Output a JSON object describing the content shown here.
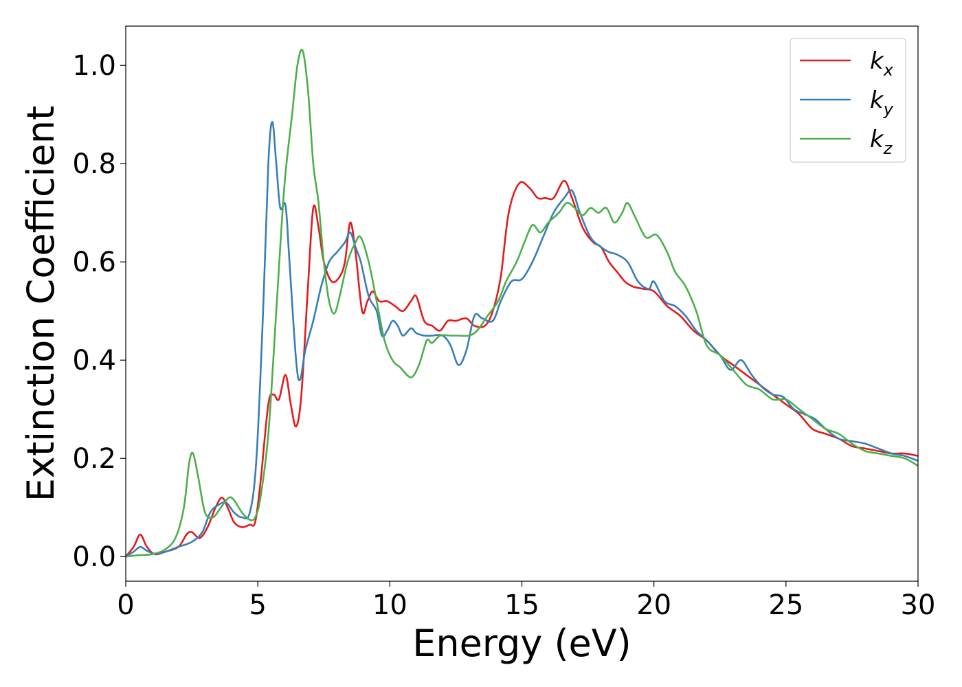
{
  "chart_data": {
    "type": "line",
    "xlabel": "Energy (eV)",
    "ylabel": "Extinction Coefficient",
    "xlim": [
      0,
      30
    ],
    "ylim": [
      -0.05,
      1.08
    ],
    "x_ticks": [
      "0",
      "5",
      "10",
      "15",
      "20",
      "25",
      "30"
    ],
    "y_ticks": [
      "0.0",
      "0.2",
      "0.4",
      "0.6",
      "0.8",
      "1.0"
    ],
    "grid": false,
    "legend_position": "top-right",
    "series": [
      {
        "name": "k",
        "subscript": "x",
        "color": "#e41a1c",
        "points": [
          [
            0,
            0
          ],
          [
            0.3,
            0.02
          ],
          [
            0.55,
            0.045
          ],
          [
            0.8,
            0.02
          ],
          [
            1.1,
            0.005
          ],
          [
            1.5,
            0.01
          ],
          [
            2.0,
            0.02
          ],
          [
            2.3,
            0.045
          ],
          [
            2.5,
            0.05
          ],
          [
            2.8,
            0.038
          ],
          [
            3.1,
            0.06
          ],
          [
            3.4,
            0.1
          ],
          [
            3.65,
            0.12
          ],
          [
            3.9,
            0.095
          ],
          [
            4.1,
            0.07
          ],
          [
            4.4,
            0.06
          ],
          [
            4.7,
            0.065
          ],
          [
            4.9,
            0.07
          ],
          [
            5.1,
            0.15
          ],
          [
            5.4,
            0.31
          ],
          [
            5.6,
            0.33
          ],
          [
            5.8,
            0.32
          ],
          [
            6.05,
            0.37
          ],
          [
            6.25,
            0.31
          ],
          [
            6.45,
            0.265
          ],
          [
            6.65,
            0.33
          ],
          [
            6.9,
            0.55
          ],
          [
            7.1,
            0.71
          ],
          [
            7.3,
            0.67
          ],
          [
            7.5,
            0.6
          ],
          [
            7.8,
            0.56
          ],
          [
            8.1,
            0.57
          ],
          [
            8.3,
            0.6
          ],
          [
            8.5,
            0.68
          ],
          [
            8.7,
            0.62
          ],
          [
            8.95,
            0.5
          ],
          [
            9.15,
            0.52
          ],
          [
            9.35,
            0.54
          ],
          [
            9.6,
            0.52
          ],
          [
            9.9,
            0.52
          ],
          [
            10.2,
            0.51
          ],
          [
            10.5,
            0.5
          ],
          [
            10.8,
            0.52
          ],
          [
            11.0,
            0.53
          ],
          [
            11.3,
            0.48
          ],
          [
            11.6,
            0.47
          ],
          [
            11.9,
            0.46
          ],
          [
            12.2,
            0.48
          ],
          [
            12.5,
            0.48
          ],
          [
            12.9,
            0.485
          ],
          [
            13.2,
            0.47
          ],
          [
            13.6,
            0.47
          ],
          [
            13.9,
            0.5
          ],
          [
            14.2,
            0.57
          ],
          [
            14.5,
            0.7
          ],
          [
            14.9,
            0.76
          ],
          [
            15.3,
            0.75
          ],
          [
            15.6,
            0.73
          ],
          [
            15.9,
            0.73
          ],
          [
            16.2,
            0.73
          ],
          [
            16.6,
            0.765
          ],
          [
            16.9,
            0.73
          ],
          [
            17.3,
            0.67
          ],
          [
            17.7,
            0.64
          ],
          [
            18.0,
            0.63
          ],
          [
            18.3,
            0.6
          ],
          [
            18.6,
            0.58
          ],
          [
            18.9,
            0.56
          ],
          [
            19.2,
            0.55
          ],
          [
            19.6,
            0.545
          ],
          [
            20.0,
            0.54
          ],
          [
            20.5,
            0.51
          ],
          [
            21.0,
            0.49
          ],
          [
            21.5,
            0.46
          ],
          [
            22.0,
            0.44
          ],
          [
            22.5,
            0.41
          ],
          [
            23.0,
            0.39
          ],
          [
            23.5,
            0.37
          ],
          [
            24.0,
            0.35
          ],
          [
            24.5,
            0.33
          ],
          [
            25.0,
            0.31
          ],
          [
            25.5,
            0.29
          ],
          [
            26.0,
            0.26
          ],
          [
            26.5,
            0.25
          ],
          [
            27.0,
            0.24
          ],
          [
            27.5,
            0.225
          ],
          [
            28.0,
            0.22
          ],
          [
            28.5,
            0.215
          ],
          [
            29.0,
            0.21
          ],
          [
            29.5,
            0.21
          ],
          [
            30.0,
            0.205
          ]
        ]
      },
      {
        "name": "k",
        "subscript": "y",
        "color": "#377eb8",
        "points": [
          [
            0,
            0
          ],
          [
            0.3,
            0.01
          ],
          [
            0.55,
            0.02
          ],
          [
            0.8,
            0.012
          ],
          [
            1.1,
            0.006
          ],
          [
            1.5,
            0.01
          ],
          [
            2.0,
            0.02
          ],
          [
            2.5,
            0.03
          ],
          [
            2.9,
            0.05
          ],
          [
            3.2,
            0.09
          ],
          [
            3.5,
            0.105
          ],
          [
            3.8,
            0.11
          ],
          [
            4.1,
            0.09
          ],
          [
            4.4,
            0.08
          ],
          [
            4.7,
            0.09
          ],
          [
            4.95,
            0.2
          ],
          [
            5.2,
            0.5
          ],
          [
            5.4,
            0.8
          ],
          [
            5.55,
            0.885
          ],
          [
            5.7,
            0.8
          ],
          [
            5.85,
            0.71
          ],
          [
            6.05,
            0.715
          ],
          [
            6.2,
            0.6
          ],
          [
            6.45,
            0.4
          ],
          [
            6.6,
            0.36
          ],
          [
            6.8,
            0.42
          ],
          [
            7.1,
            0.48
          ],
          [
            7.4,
            0.55
          ],
          [
            7.7,
            0.6
          ],
          [
            8.0,
            0.62
          ],
          [
            8.3,
            0.64
          ],
          [
            8.5,
            0.66
          ],
          [
            8.7,
            0.63
          ],
          [
            8.9,
            0.6
          ],
          [
            9.2,
            0.53
          ],
          [
            9.5,
            0.5
          ],
          [
            9.7,
            0.45
          ],
          [
            9.9,
            0.46
          ],
          [
            10.1,
            0.48
          ],
          [
            10.3,
            0.47
          ],
          [
            10.5,
            0.45
          ],
          [
            10.8,
            0.465
          ],
          [
            11.0,
            0.455
          ],
          [
            11.3,
            0.45
          ],
          [
            11.6,
            0.45
          ],
          [
            12.0,
            0.45
          ],
          [
            12.3,
            0.43
          ],
          [
            12.6,
            0.39
          ],
          [
            12.9,
            0.42
          ],
          [
            13.2,
            0.49
          ],
          [
            13.5,
            0.485
          ],
          [
            13.9,
            0.48
          ],
          [
            14.2,
            0.52
          ],
          [
            14.6,
            0.56
          ],
          [
            15.0,
            0.565
          ],
          [
            15.4,
            0.6
          ],
          [
            15.8,
            0.65
          ],
          [
            16.2,
            0.7
          ],
          [
            16.6,
            0.73
          ],
          [
            16.9,
            0.745
          ],
          [
            17.2,
            0.7
          ],
          [
            17.6,
            0.65
          ],
          [
            18.0,
            0.63
          ],
          [
            18.3,
            0.62
          ],
          [
            18.6,
            0.615
          ],
          [
            19.0,
            0.6
          ],
          [
            19.4,
            0.56
          ],
          [
            19.8,
            0.545
          ],
          [
            20.0,
            0.56
          ],
          [
            20.4,
            0.52
          ],
          [
            20.8,
            0.51
          ],
          [
            21.2,
            0.49
          ],
          [
            21.6,
            0.46
          ],
          [
            22.0,
            0.44
          ],
          [
            22.5,
            0.41
          ],
          [
            22.9,
            0.38
          ],
          [
            23.3,
            0.4
          ],
          [
            23.7,
            0.37
          ],
          [
            24.1,
            0.345
          ],
          [
            24.5,
            0.33
          ],
          [
            24.9,
            0.325
          ],
          [
            25.3,
            0.3
          ],
          [
            25.7,
            0.29
          ],
          [
            26.1,
            0.28
          ],
          [
            26.5,
            0.26
          ],
          [
            27.0,
            0.24
          ],
          [
            27.5,
            0.235
          ],
          [
            28.0,
            0.23
          ],
          [
            28.5,
            0.22
          ],
          [
            29.0,
            0.21
          ],
          [
            29.5,
            0.205
          ],
          [
            30.0,
            0.195
          ]
        ]
      },
      {
        "name": "k",
        "subscript": "z",
        "color": "#4daf4a",
        "points": [
          [
            0,
            0
          ],
          [
            0.5,
            0.003
          ],
          [
            1.0,
            0.005
          ],
          [
            1.5,
            0.015
          ],
          [
            1.9,
            0.04
          ],
          [
            2.2,
            0.1
          ],
          [
            2.4,
            0.19
          ],
          [
            2.55,
            0.21
          ],
          [
            2.75,
            0.16
          ],
          [
            3.0,
            0.09
          ],
          [
            3.3,
            0.08
          ],
          [
            3.6,
            0.1
          ],
          [
            3.9,
            0.12
          ],
          [
            4.1,
            0.115
          ],
          [
            4.4,
            0.09
          ],
          [
            4.7,
            0.075
          ],
          [
            4.9,
            0.08
          ],
          [
            5.1,
            0.12
          ],
          [
            5.4,
            0.25
          ],
          [
            5.7,
            0.5
          ],
          [
            6.0,
            0.75
          ],
          [
            6.3,
            0.9
          ],
          [
            6.5,
            1.0
          ],
          [
            6.7,
            1.03
          ],
          [
            6.9,
            0.95
          ],
          [
            7.1,
            0.8
          ],
          [
            7.3,
            0.72
          ],
          [
            7.5,
            0.6
          ],
          [
            7.7,
            0.52
          ],
          [
            7.9,
            0.495
          ],
          [
            8.1,
            0.53
          ],
          [
            8.4,
            0.6
          ],
          [
            8.7,
            0.64
          ],
          [
            8.9,
            0.65
          ],
          [
            9.2,
            0.6
          ],
          [
            9.5,
            0.52
          ],
          [
            9.8,
            0.44
          ],
          [
            10.1,
            0.4
          ],
          [
            10.4,
            0.385
          ],
          [
            10.8,
            0.365
          ],
          [
            11.1,
            0.39
          ],
          [
            11.4,
            0.44
          ],
          [
            11.6,
            0.435
          ],
          [
            11.9,
            0.45
          ],
          [
            12.3,
            0.45
          ],
          [
            12.6,
            0.45
          ],
          [
            13.0,
            0.45
          ],
          [
            13.3,
            0.46
          ],
          [
            13.7,
            0.49
          ],
          [
            14.1,
            0.52
          ],
          [
            14.4,
            0.56
          ],
          [
            14.8,
            0.6
          ],
          [
            15.1,
            0.64
          ],
          [
            15.4,
            0.675
          ],
          [
            15.7,
            0.66
          ],
          [
            16.0,
            0.68
          ],
          [
            16.4,
            0.7
          ],
          [
            16.7,
            0.72
          ],
          [
            17.0,
            0.71
          ],
          [
            17.3,
            0.695
          ],
          [
            17.6,
            0.71
          ],
          [
            17.9,
            0.7
          ],
          [
            18.2,
            0.71
          ],
          [
            18.5,
            0.68
          ],
          [
            18.8,
            0.7
          ],
          [
            19.0,
            0.72
          ],
          [
            19.3,
            0.69
          ],
          [
            19.7,
            0.65
          ],
          [
            20.1,
            0.655
          ],
          [
            20.5,
            0.62
          ],
          [
            20.8,
            0.58
          ],
          [
            21.2,
            0.55
          ],
          [
            21.6,
            0.5
          ],
          [
            22.0,
            0.43
          ],
          [
            22.5,
            0.41
          ],
          [
            23.0,
            0.38
          ],
          [
            23.5,
            0.35
          ],
          [
            24.0,
            0.34
          ],
          [
            24.5,
            0.32
          ],
          [
            25.0,
            0.32
          ],
          [
            25.5,
            0.3
          ],
          [
            26.0,
            0.28
          ],
          [
            26.5,
            0.26
          ],
          [
            27.0,
            0.25
          ],
          [
            27.5,
            0.23
          ],
          [
            28.0,
            0.215
          ],
          [
            28.5,
            0.21
          ],
          [
            29.0,
            0.205
          ],
          [
            29.5,
            0.2
          ],
          [
            30.0,
            0.185
          ]
        ]
      }
    ]
  }
}
